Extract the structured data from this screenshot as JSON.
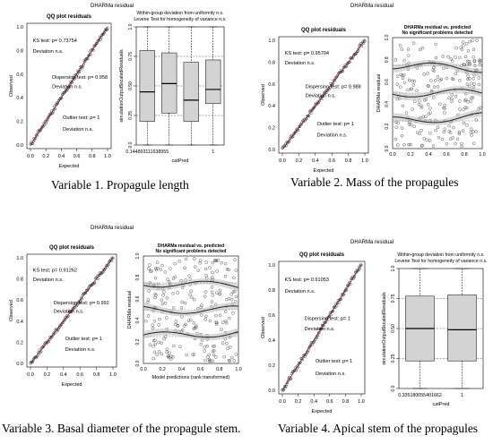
{
  "figures": [
    {
      "id": "p1",
      "suptitle": "DHARMa residual",
      "caption": "Variable 1. Propagule length",
      "qq": {
        "title": "QQ plot residuals",
        "xlabel": "Expected",
        "ylabel": "Observed",
        "ticks": [
          "0.0",
          "0.2",
          "0.4",
          "0.6",
          "0.8",
          "1.0"
        ],
        "annotations": [
          {
            "text": "KS test: p= 0.73754",
            "color": "#000000"
          },
          {
            "text": "Deviation  n.s.",
            "color": "#000000"
          },
          {
            "text": "Dispersion test: p= 0.958",
            "color": "#000000"
          },
          {
            "text": "Deviation  n.s.",
            "color": "#000000"
          },
          {
            "text": "Outlier test: p= 1",
            "color": "#000000"
          },
          {
            "text": "Deviation  n.s.",
            "color": "#000000"
          }
        ]
      },
      "right": {
        "type": "box",
        "title1": "Within-group deviation from uniformity n.s.",
        "title2": "Levene Test for homogeneity of variance n.s.",
        "xlabel": "catPred",
        "ylabel": "simulationOutput$scaledResiduals",
        "yticks": [
          "0.0",
          "0.25",
          "0.50",
          "0.75",
          "1.0"
        ],
        "xtick_labels": [
          "0.144893111638955",
          "",
          "",
          "1"
        ],
        "boxes": [
          {
            "min": 0.0,
            "q1": 0.2,
            "median": 0.45,
            "q3": 0.8,
            "max": 1.0
          },
          {
            "min": 0.0,
            "q1": 0.27,
            "median": 0.52,
            "q3": 0.78,
            "max": 1.0
          },
          {
            "min": 0.0,
            "q1": 0.2,
            "median": 0.38,
            "q3": 0.7,
            "max": 1.0
          },
          {
            "min": 0.0,
            "q1": 0.35,
            "median": 0.47,
            "q3": 0.72,
            "max": 1.0
          }
        ]
      }
    },
    {
      "id": "p2",
      "suptitle": "DHARMa residual",
      "caption": "Variable 2. Mass of the propagules",
      "qq": {
        "title": "QQ plot residuals",
        "xlabel": "Expected",
        "ylabel": "Observed",
        "ticks": [
          "0.0",
          "0.2",
          "0.4",
          "0.6",
          "0.8",
          "1.0"
        ],
        "annotations": [
          {
            "text": "KS test: p= 0.95704",
            "color": "#000000"
          },
          {
            "text": "Deviation  n.s.",
            "color": "#000000"
          },
          {
            "text": "Dispersion test: p= 0.988",
            "color": "#000000"
          },
          {
            "text": "Deviation  n.s.",
            "color": "#000000"
          },
          {
            "text": "Outlier test: p= 1",
            "color": "#000000"
          },
          {
            "text": "Deviation  n.s.",
            "color": "#000000"
          }
        ]
      },
      "right": {
        "type": "scatter",
        "title1": "DHARMa residual vs. predicted",
        "title2": "No significant problems detected",
        "xlabel": "",
        "ylabel": "DHARMa residual",
        "yticks": [
          "0.0",
          "0.2",
          "0.4",
          "0.6",
          "0.8",
          "1.0"
        ],
        "xticks": [
          "0.0",
          "0.2",
          "0.4",
          "0.6",
          "0.8",
          "1.0"
        ]
      }
    },
    {
      "id": "p3",
      "suptitle": "DHARMa residual",
      "caption": "Variable 3. Basal diameter of the propagule stem.",
      "qq": {
        "title": "QQ plot residuals",
        "xlabel": "Expected",
        "ylabel": "Observed",
        "ticks": [
          "0.0",
          "0.2",
          "0.4",
          "0.6",
          "0.8",
          "1.0"
        ],
        "annotations": [
          {
            "text": "KS test: p= 0.91262",
            "color": "#000000"
          },
          {
            "text": "Deviation  n.s.",
            "color": "#000000"
          },
          {
            "text": "Dispersion test: p= 0.992",
            "color": "#000000"
          },
          {
            "text": "Deviation  n.s.",
            "color": "#000000"
          },
          {
            "text": "Outlier test: p= 1",
            "color": "#000000"
          },
          {
            "text": "Deviation  n.s.",
            "color": "#000000"
          }
        ]
      },
      "right": {
        "type": "scatter",
        "title1": "DHARMa residual vs. predicted",
        "title2": "No significant problems detected",
        "xlabel": "Model predictions (rank transformed)",
        "ylabel": "DHARMa residual",
        "yticks": [
          "0.0",
          "0.2",
          "0.4",
          "0.6",
          "0.8",
          "1.0"
        ],
        "xticks": [
          "0.0",
          "0.2",
          "0.4",
          "0.6",
          "0.8",
          "1.0"
        ]
      }
    },
    {
      "id": "p4",
      "suptitle": "DHARMa residual",
      "caption": "Variable 4. Apical stem of the propagules",
      "qq": {
        "title": "QQ plot residuals",
        "xlabel": "Expected",
        "ylabel": "Observed",
        "ticks": [
          "0.0",
          "0.2",
          "0.4",
          "0.6",
          "0.8",
          "1.0"
        ],
        "annotations": [
          {
            "text": "KS test: p= 0.91053",
            "color": "#000000"
          },
          {
            "text": "Deviation  n.s.",
            "color": "#000000"
          },
          {
            "text": "Dispersion test: p= 1",
            "color": "#000000"
          },
          {
            "text": "Deviation  n.s.",
            "color": "#000000"
          },
          {
            "text": "Outlier test: p= 1",
            "color": "#000000"
          },
          {
            "text": "Deviation  n.s.",
            "color": "#000000"
          }
        ]
      },
      "right": {
        "type": "box",
        "title1": "Within-group deviation from uniformity n.s.",
        "title2": "Levene Test for homogeneity of variance n.s.",
        "xlabel": "catPred",
        "ylabel": "simulationOutput$scaledResiduals",
        "yticks": [
          "0.0",
          "0.25",
          "0.50",
          "0.75",
          "1.0"
        ],
        "xtick_labels": [
          "0.335180055401662",
          "1"
        ],
        "boxes": [
          {
            "min": 0.0,
            "q1": 0.23,
            "median": 0.5,
            "q3": 0.77,
            "max": 1.0
          },
          {
            "min": 0.0,
            "q1": 0.23,
            "median": 0.49,
            "q3": 0.78,
            "max": 1.0
          }
        ]
      }
    }
  ],
  "chart_data": [
    {
      "type": "scatter",
      "title": "QQ plot residuals",
      "xlabel": "Expected",
      "ylabel": "Observed",
      "xlim": [
        0,
        1
      ],
      "ylim": [
        0,
        1
      ],
      "note": "points along identity line"
    },
    {
      "type": "box",
      "title": "Within-group deviation from uniformity n.s.",
      "xlabel": "catPred",
      "ylabel": "simulationOutput$scaledResiduals",
      "categories": [
        "0.144893111638955",
        "",
        "",
        "1"
      ],
      "medians": [
        0.45,
        0.52,
        0.38,
        0.47
      ]
    },
    {
      "type": "scatter",
      "title": "QQ plot residuals",
      "xlabel": "Expected",
      "ylabel": "Observed",
      "xlim": [
        0,
        1
      ],
      "ylim": [
        0,
        1
      ]
    },
    {
      "type": "scatter",
      "title": "DHARMa residual vs. predicted",
      "ylabel": "DHARMa residual",
      "xlim": [
        0,
        1
      ],
      "ylim": [
        0,
        1
      ],
      "quantile_lines": [
        0.25,
        0.5,
        0.75
      ]
    },
    {
      "type": "scatter",
      "title": "QQ plot residuals",
      "xlabel": "Expected",
      "ylabel": "Observed",
      "xlim": [
        0,
        1
      ],
      "ylim": [
        0,
        1
      ]
    },
    {
      "type": "scatter",
      "title": "DHARMa residual vs. predicted",
      "xlabel": "Model predictions (rank transformed)",
      "ylabel": "DHARMa residual",
      "xlim": [
        0,
        1
      ],
      "ylim": [
        0,
        1
      ],
      "quantile_lines": [
        0.25,
        0.5,
        0.75
      ]
    },
    {
      "type": "scatter",
      "title": "QQ plot residuals",
      "xlabel": "Expected",
      "ylabel": "Observed",
      "xlim": [
        0,
        1
      ],
      "ylim": [
        0,
        1
      ]
    },
    {
      "type": "box",
      "title": "Within-group deviation from uniformity n.s.",
      "xlabel": "catPred",
      "ylabel": "simulationOutput$scaledResiduals",
      "categories": [
        "0.335180055401662",
        "1"
      ],
      "medians": [
        0.5,
        0.49
      ]
    }
  ]
}
